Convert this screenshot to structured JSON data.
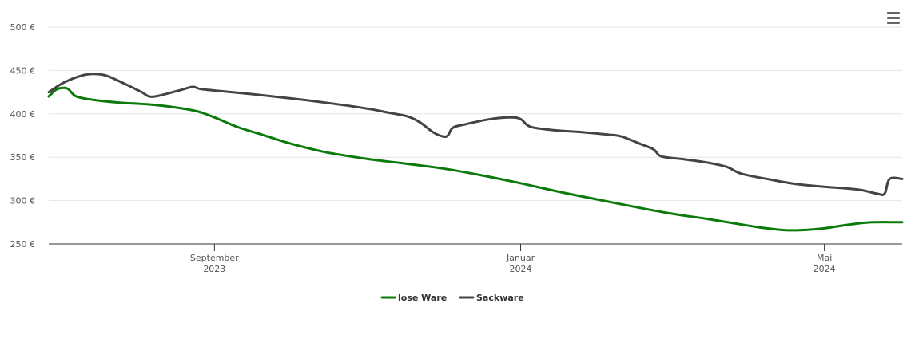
{
  "colors": {
    "lose_ware": "#0a7a0a",
    "sackware": "#434348",
    "grid": "#e6e6e6",
    "axis": "#333333"
  },
  "icons": {
    "menu": "hamburger-menu-icon"
  },
  "chart_data": {
    "type": "line",
    "title": "",
    "xlabel": "",
    "ylabel": "",
    "ylim": [
      250,
      500
    ],
    "y_ticks": [
      {
        "value": 500,
        "label": "500 €"
      },
      {
        "value": 450,
        "label": "450 €"
      },
      {
        "value": 400,
        "label": "400 €"
      },
      {
        "value": 350,
        "label": "350 €"
      },
      {
        "value": 300,
        "label": "300 €"
      },
      {
        "value": 250,
        "label": "250 €"
      }
    ],
    "xlim": [
      "2023-06-27",
      "2024-06-01"
    ],
    "x_ticks": [
      {
        "date": "2023-09-01",
        "line1": "September",
        "line2": "2023"
      },
      {
        "date": "2024-01-01",
        "line1": "Januar",
        "line2": "2024"
      },
      {
        "date": "2024-05-01",
        "line1": "Mai",
        "line2": "2024"
      }
    ],
    "grid": true,
    "legend_position": "bottom-center",
    "series": [
      {
        "name": "lose Ware",
        "color": "#0a7a0a",
        "points": [
          [
            "2023-06-27",
            420
          ],
          [
            "2023-06-30",
            428
          ],
          [
            "2023-07-03",
            430
          ],
          [
            "2023-07-05",
            428
          ],
          [
            "2023-07-08",
            420
          ],
          [
            "2023-07-15",
            416
          ],
          [
            "2023-07-25",
            413
          ],
          [
            "2023-08-05",
            411
          ],
          [
            "2023-08-15",
            408
          ],
          [
            "2023-08-25",
            403
          ],
          [
            "2023-09-01",
            396
          ],
          [
            "2023-09-10",
            385
          ],
          [
            "2023-09-20",
            376
          ],
          [
            "2023-10-01",
            366
          ],
          [
            "2023-10-15",
            356
          ],
          [
            "2023-11-01",
            348
          ],
          [
            "2023-11-15",
            343
          ],
          [
            "2023-12-01",
            337
          ],
          [
            "2023-12-15",
            330
          ],
          [
            "2024-01-01",
            320
          ],
          [
            "2024-01-15",
            311
          ],
          [
            "2024-02-01",
            301
          ],
          [
            "2024-02-15",
            293
          ],
          [
            "2024-03-01",
            285
          ],
          [
            "2024-03-15",
            279
          ],
          [
            "2024-04-01",
            271
          ],
          [
            "2024-04-08",
            268
          ],
          [
            "2024-04-15",
            266
          ],
          [
            "2024-04-22",
            266
          ],
          [
            "2024-05-01",
            268
          ],
          [
            "2024-05-10",
            272
          ],
          [
            "2024-05-20",
            275
          ],
          [
            "2024-06-01",
            275
          ]
        ]
      },
      {
        "name": "Sackware",
        "color": "#434348",
        "points": [
          [
            "2023-06-27",
            425
          ],
          [
            "2023-07-03",
            436
          ],
          [
            "2023-07-10",
            444
          ],
          [
            "2023-07-15",
            446
          ],
          [
            "2023-07-20",
            444
          ],
          [
            "2023-07-27",
            435
          ],
          [
            "2023-08-03",
            425
          ],
          [
            "2023-08-06",
            420
          ],
          [
            "2023-08-10",
            421
          ],
          [
            "2023-08-18",
            427
          ],
          [
            "2023-08-23",
            431
          ],
          [
            "2023-08-25",
            430
          ],
          [
            "2023-08-28",
            428
          ],
          [
            "2023-09-15",
            423
          ],
          [
            "2023-10-01",
            418
          ],
          [
            "2023-10-15",
            413
          ],
          [
            "2023-11-01",
            406
          ],
          [
            "2023-11-10",
            401
          ],
          [
            "2023-11-17",
            397
          ],
          [
            "2023-11-22",
            390
          ],
          [
            "2023-11-27",
            379
          ],
          [
            "2023-12-01",
            374
          ],
          [
            "2023-12-03",
            375
          ],
          [
            "2023-12-05",
            384
          ],
          [
            "2023-12-10",
            388
          ],
          [
            "2023-12-20",
            394
          ],
          [
            "2023-12-28",
            396
          ],
          [
            "2024-01-01",
            394
          ],
          [
            "2024-01-05",
            385
          ],
          [
            "2024-01-15",
            381
          ],
          [
            "2024-01-25",
            379
          ],
          [
            "2024-02-05",
            376
          ],
          [
            "2024-02-10",
            374
          ],
          [
            "2024-02-18",
            365
          ],
          [
            "2024-02-23",
            359
          ],
          [
            "2024-02-26",
            351
          ],
          [
            "2024-03-05",
            348
          ],
          [
            "2024-03-15",
            344
          ],
          [
            "2024-03-23",
            339
          ],
          [
            "2024-03-29",
            331
          ],
          [
            "2024-04-10",
            324
          ],
          [
            "2024-04-20",
            319
          ],
          [
            "2024-05-01",
            316
          ],
          [
            "2024-05-10",
            314
          ],
          [
            "2024-05-16",
            312
          ],
          [
            "2024-05-22",
            308
          ],
          [
            "2024-05-25",
            308
          ],
          [
            "2024-05-27",
            325
          ],
          [
            "2024-06-01",
            325
          ]
        ]
      }
    ]
  }
}
